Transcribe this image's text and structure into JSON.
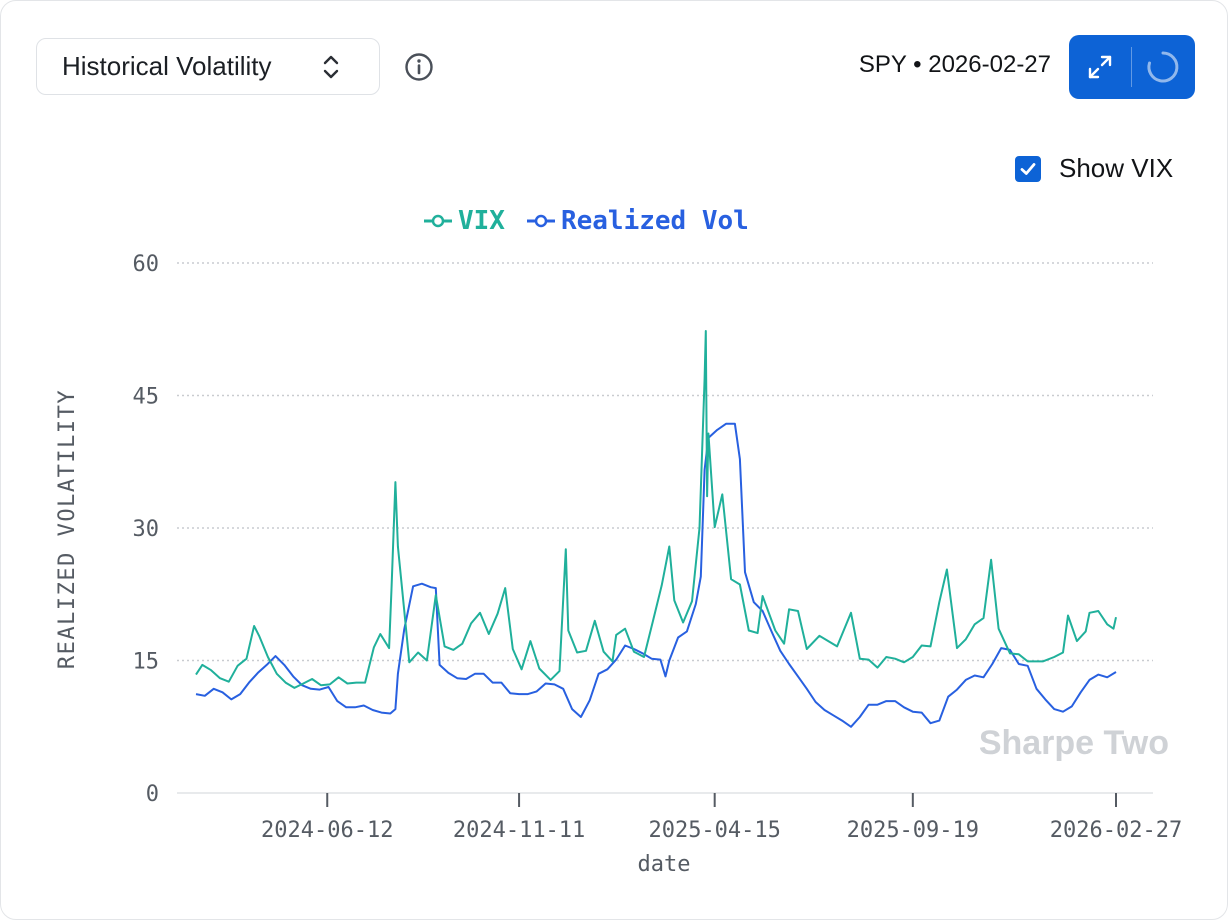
{
  "header": {
    "selector_label": "Historical Volatility",
    "ticker_info": "SPY • 2026-02-27"
  },
  "icons": {
    "selector": "chevron-up-down-icon",
    "info": "info-circle-icon",
    "expand": "expand-arrows-icon",
    "refresh": "loading-spinner-icon",
    "checkbox": "checkmark-icon"
  },
  "toggle": {
    "label": "Show VIX",
    "checked": true
  },
  "colors": {
    "vix": "#20b09b",
    "realized": "#2860e0",
    "accent": "#0d63d6",
    "watermark": "#cfd2d6",
    "grid": "#c9ccd0"
  },
  "watermark": "Sharpe Two",
  "chart_data": {
    "type": "line",
    "xlabel": "date",
    "ylabel": "REALIZED VOLATILITY",
    "ylim": [
      0,
      60
    ],
    "yticks": [
      0,
      15,
      30,
      45,
      60
    ],
    "xticks": [
      "2024-06-12",
      "2024-11-11",
      "2025-04-15",
      "2025-09-19",
      "2026-02-27"
    ],
    "xlim": [
      "2024-02-29",
      "2026-02-27"
    ],
    "grid": "horizontal dotted",
    "legend_position": "top-center",
    "series": [
      {
        "name": "VIX",
        "points": [
          [
            "2024-02-29",
            13.4
          ],
          [
            "2024-03-05",
            14.5
          ],
          [
            "2024-03-12",
            13.9
          ],
          [
            "2024-03-19",
            13.0
          ],
          [
            "2024-03-26",
            12.6
          ],
          [
            "2024-04-02",
            14.4
          ],
          [
            "2024-04-09",
            15.2
          ],
          [
            "2024-04-15",
            18.9
          ],
          [
            "2024-04-19",
            17.8
          ],
          [
            "2024-04-26",
            15.4
          ],
          [
            "2024-05-03",
            13.5
          ],
          [
            "2024-05-10",
            12.5
          ],
          [
            "2024-05-17",
            11.9
          ],
          [
            "2024-05-24",
            12.4
          ],
          [
            "2024-05-31",
            12.9
          ],
          [
            "2024-06-07",
            12.2
          ],
          [
            "2024-06-14",
            12.3
          ],
          [
            "2024-06-21",
            13.1
          ],
          [
            "2024-06-28",
            12.4
          ],
          [
            "2024-07-05",
            12.5
          ],
          [
            "2024-07-12",
            12.5
          ],
          [
            "2024-07-19",
            16.5
          ],
          [
            "2024-07-24",
            18.0
          ],
          [
            "2024-07-31",
            16.4
          ],
          [
            "2024-08-02",
            23.4
          ],
          [
            "2024-08-05",
            35.2
          ],
          [
            "2024-08-07",
            27.9
          ],
          [
            "2024-08-12",
            20.7
          ],
          [
            "2024-08-16",
            14.8
          ],
          [
            "2024-08-23",
            15.9
          ],
          [
            "2024-08-30",
            15.0
          ],
          [
            "2024-09-06",
            22.4
          ],
          [
            "2024-09-13",
            16.6
          ],
          [
            "2024-09-20",
            16.2
          ],
          [
            "2024-09-27",
            16.9
          ],
          [
            "2024-10-04",
            19.2
          ],
          [
            "2024-10-11",
            20.4
          ],
          [
            "2024-10-18",
            18.0
          ],
          [
            "2024-10-25",
            20.3
          ],
          [
            "2024-10-31",
            23.2
          ],
          [
            "2024-11-06",
            16.3
          ],
          [
            "2024-11-13",
            14.0
          ],
          [
            "2024-11-20",
            17.2
          ],
          [
            "2024-11-27",
            14.1
          ],
          [
            "2024-12-06",
            12.8
          ],
          [
            "2024-12-13",
            13.8
          ],
          [
            "2024-12-18",
            27.6
          ],
          [
            "2024-12-20",
            18.4
          ],
          [
            "2024-12-27",
            15.9
          ],
          [
            "2025-01-03",
            16.1
          ],
          [
            "2025-01-10",
            19.5
          ],
          [
            "2025-01-17",
            16.0
          ],
          [
            "2025-01-24",
            14.9
          ],
          [
            "2025-01-27",
            17.9
          ],
          [
            "2025-02-03",
            18.6
          ],
          [
            "2025-02-10",
            16.0
          ],
          [
            "2025-02-18",
            15.4
          ],
          [
            "2025-02-25",
            19.4
          ],
          [
            "2025-03-04",
            23.5
          ],
          [
            "2025-03-10",
            27.9
          ],
          [
            "2025-03-14",
            21.8
          ],
          [
            "2025-03-21",
            19.3
          ],
          [
            "2025-03-28",
            21.7
          ],
          [
            "2025-04-03",
            30.0
          ],
          [
            "2025-04-07",
            46.9
          ],
          [
            "2025-04-08",
            52.3
          ],
          [
            "2025-04-09",
            33.6
          ],
          [
            "2025-04-10",
            40.7
          ],
          [
            "2025-04-15",
            30.1
          ],
          [
            "2025-04-21",
            33.8
          ],
          [
            "2025-04-28",
            24.2
          ],
          [
            "2025-05-05",
            23.6
          ],
          [
            "2025-05-12",
            18.4
          ],
          [
            "2025-05-19",
            18.1
          ],
          [
            "2025-05-23",
            22.3
          ],
          [
            "2025-06-02",
            18.4
          ],
          [
            "2025-06-09",
            16.9
          ],
          [
            "2025-06-13",
            20.8
          ],
          [
            "2025-06-20",
            20.6
          ],
          [
            "2025-06-27",
            16.3
          ],
          [
            "2025-07-07",
            17.8
          ],
          [
            "2025-07-14",
            17.2
          ],
          [
            "2025-07-21",
            16.6
          ],
          [
            "2025-08-01",
            20.4
          ],
          [
            "2025-08-08",
            15.2
          ],
          [
            "2025-08-15",
            15.1
          ],
          [
            "2025-08-22",
            14.2
          ],
          [
            "2025-08-29",
            15.4
          ],
          [
            "2025-09-05",
            15.2
          ],
          [
            "2025-09-12",
            14.8
          ],
          [
            "2025-09-19",
            15.4
          ],
          [
            "2025-09-26",
            16.7
          ],
          [
            "2025-10-03",
            16.6
          ],
          [
            "2025-10-10",
            21.6
          ],
          [
            "2025-10-16",
            25.3
          ],
          [
            "2025-10-24",
            16.4
          ],
          [
            "2025-10-31",
            17.4
          ],
          [
            "2025-11-07",
            19.1
          ],
          [
            "2025-11-14",
            19.8
          ],
          [
            "2025-11-20",
            26.4
          ],
          [
            "2025-11-26",
            18.6
          ],
          [
            "2025-12-05",
            15.8
          ],
          [
            "2025-12-12",
            15.7
          ],
          [
            "2025-12-19",
            14.9
          ],
          [
            "2025-12-31",
            14.9
          ],
          [
            "2026-01-09",
            15.4
          ],
          [
            "2026-01-16",
            15.9
          ],
          [
            "2026-01-20",
            20.1
          ],
          [
            "2026-01-27",
            17.2
          ],
          [
            "2026-02-03",
            18.3
          ],
          [
            "2026-02-06",
            20.4
          ],
          [
            "2026-02-13",
            20.6
          ],
          [
            "2026-02-20",
            19.1
          ],
          [
            "2026-02-25",
            18.6
          ],
          [
            "2026-02-27",
            19.9
          ]
        ]
      },
      {
        "name": "Realized Vol",
        "points": [
          [
            "2024-02-29",
            11.2
          ],
          [
            "2024-03-07",
            11.0
          ],
          [
            "2024-03-14",
            11.8
          ],
          [
            "2024-03-21",
            11.4
          ],
          [
            "2024-03-28",
            10.6
          ],
          [
            "2024-04-04",
            11.2
          ],
          [
            "2024-04-11",
            12.5
          ],
          [
            "2024-04-18",
            13.6
          ],
          [
            "2024-04-25",
            14.5
          ],
          [
            "2024-05-02",
            15.5
          ],
          [
            "2024-05-09",
            14.5
          ],
          [
            "2024-05-16",
            13.2
          ],
          [
            "2024-05-23",
            12.2
          ],
          [
            "2024-05-30",
            11.8
          ],
          [
            "2024-06-06",
            11.7
          ],
          [
            "2024-06-13",
            12.0
          ],
          [
            "2024-06-20",
            10.4
          ],
          [
            "2024-06-27",
            9.7
          ],
          [
            "2024-07-04",
            9.7
          ],
          [
            "2024-07-11",
            9.9
          ],
          [
            "2024-07-18",
            9.4
          ],
          [
            "2024-07-25",
            9.1
          ],
          [
            "2024-08-01",
            9.0
          ],
          [
            "2024-08-05",
            9.5
          ],
          [
            "2024-08-07",
            13.5
          ],
          [
            "2024-08-12",
            18.5
          ],
          [
            "2024-08-19",
            23.4
          ],
          [
            "2024-08-26",
            23.7
          ],
          [
            "2024-09-02",
            23.3
          ],
          [
            "2024-09-06",
            23.2
          ],
          [
            "2024-09-09",
            14.5
          ],
          [
            "2024-09-16",
            13.6
          ],
          [
            "2024-09-23",
            13.0
          ],
          [
            "2024-09-30",
            12.9
          ],
          [
            "2024-10-07",
            13.5
          ],
          [
            "2024-10-14",
            13.5
          ],
          [
            "2024-10-21",
            12.5
          ],
          [
            "2024-10-28",
            12.5
          ],
          [
            "2024-11-04",
            11.3
          ],
          [
            "2024-11-11",
            11.2
          ],
          [
            "2024-11-18",
            11.2
          ],
          [
            "2024-11-25",
            11.5
          ],
          [
            "2024-12-02",
            12.4
          ],
          [
            "2024-12-09",
            12.3
          ],
          [
            "2024-12-16",
            11.8
          ],
          [
            "2024-12-23",
            9.5
          ],
          [
            "2024-12-30",
            8.6
          ],
          [
            "2025-01-06",
            10.5
          ],
          [
            "2025-01-13",
            13.5
          ],
          [
            "2025-01-20",
            14.0
          ],
          [
            "2025-01-27",
            15.1
          ],
          [
            "2025-02-03",
            16.7
          ],
          [
            "2025-02-10",
            16.3
          ],
          [
            "2025-02-17",
            15.8
          ],
          [
            "2025-02-24",
            15.2
          ],
          [
            "2025-03-03",
            15.1
          ],
          [
            "2025-03-07",
            13.2
          ],
          [
            "2025-03-10",
            15.0
          ],
          [
            "2025-03-17",
            17.6
          ],
          [
            "2025-03-24",
            18.3
          ],
          [
            "2025-03-31",
            21.4
          ],
          [
            "2025-04-04",
            24.5
          ],
          [
            "2025-04-07",
            36.6
          ],
          [
            "2025-04-10",
            40.2
          ],
          [
            "2025-04-17",
            41.1
          ],
          [
            "2025-04-24",
            41.8
          ],
          [
            "2025-05-01",
            41.8
          ],
          [
            "2025-05-05",
            37.8
          ],
          [
            "2025-05-09",
            25.0
          ],
          [
            "2025-05-16",
            21.6
          ],
          [
            "2025-05-23",
            20.6
          ],
          [
            "2025-05-30",
            18.3
          ],
          [
            "2025-06-06",
            16.1
          ],
          [
            "2025-06-13",
            14.6
          ],
          [
            "2025-06-20",
            13.2
          ],
          [
            "2025-06-27",
            11.8
          ],
          [
            "2025-07-04",
            10.3
          ],
          [
            "2025-07-11",
            9.4
          ],
          [
            "2025-07-18",
            8.8
          ],
          [
            "2025-07-25",
            8.2
          ],
          [
            "2025-08-01",
            7.5
          ],
          [
            "2025-08-08",
            8.6
          ],
          [
            "2025-08-15",
            10.0
          ],
          [
            "2025-08-22",
            10.0
          ],
          [
            "2025-08-29",
            10.4
          ],
          [
            "2025-09-05",
            10.4
          ],
          [
            "2025-09-12",
            9.7
          ],
          [
            "2025-09-19",
            9.2
          ],
          [
            "2025-09-26",
            9.1
          ],
          [
            "2025-10-03",
            7.9
          ],
          [
            "2025-10-10",
            8.2
          ],
          [
            "2025-10-17",
            10.9
          ],
          [
            "2025-10-24",
            11.7
          ],
          [
            "2025-10-31",
            12.8
          ],
          [
            "2025-11-07",
            13.3
          ],
          [
            "2025-11-14",
            13.1
          ],
          [
            "2025-11-21",
            14.6
          ],
          [
            "2025-11-28",
            16.4
          ],
          [
            "2025-12-05",
            16.2
          ],
          [
            "2025-12-12",
            14.6
          ],
          [
            "2025-12-19",
            14.4
          ],
          [
            "2025-12-26",
            11.8
          ],
          [
            "2026-01-02",
            10.6
          ],
          [
            "2026-01-09",
            9.5
          ],
          [
            "2026-01-16",
            9.2
          ],
          [
            "2026-01-23",
            9.8
          ],
          [
            "2026-01-30",
            11.4
          ],
          [
            "2026-02-06",
            12.8
          ],
          [
            "2026-02-13",
            13.4
          ],
          [
            "2026-02-20",
            13.1
          ],
          [
            "2026-02-27",
            13.7
          ]
        ]
      }
    ]
  }
}
